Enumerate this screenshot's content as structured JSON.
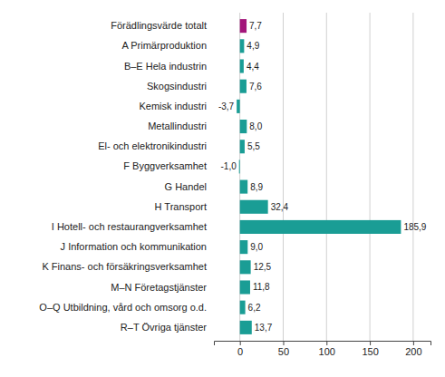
{
  "chart_data": {
    "type": "bar",
    "orientation": "horizontal",
    "categories": [
      "Förädlingsvärde totalt",
      "A Primärproduktion",
      "B–E Hela industrin",
      "Skogsindustri",
      "Kemisk industri",
      "Metallindustri",
      "El- och elektronikindustri",
      "F Byggverksamhet",
      "G Handel",
      "H Transport",
      "I Hotell- och restaurangverksamhet",
      "J Information och kommunikation",
      "K Finans- och försäkringsverksamhet",
      "M–N Företagstjänster",
      "O–Q Utbildning, vård och omsorg o.d.",
      "R–T Övriga tjänster"
    ],
    "values": [
      7.7,
      4.9,
      4.4,
      7.6,
      -3.7,
      8.0,
      5.5,
      -1.0,
      8.9,
      32.4,
      185.9,
      9.0,
      12.5,
      11.8,
      6.2,
      13.7
    ],
    "value_labels": [
      "7,7",
      "4,9",
      "4,4",
      "7,6",
      "-3,7",
      "8,0",
      "5,5",
      "-1,0",
      "8,9",
      "32,4",
      "185,9",
      "9,0",
      "12,5",
      "11,8",
      "6,2",
      "13,7"
    ],
    "colors": [
      "#a3167a",
      "#1a9d95",
      "#1a9d95",
      "#1a9d95",
      "#1a9d95",
      "#1a9d95",
      "#1a9d95",
      "#1a9d95",
      "#1a9d95",
      "#1a9d95",
      "#1a9d95",
      "#1a9d95",
      "#1a9d95",
      "#1a9d95",
      "#1a9d95",
      "#1a9d95"
    ],
    "xlim": [
      -30,
      220
    ],
    "xticks": [
      0,
      50,
      100,
      150,
      200
    ],
    "grid": true,
    "data_labels": true
  }
}
